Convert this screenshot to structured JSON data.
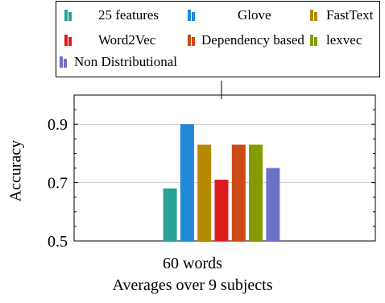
{
  "chart_data": {
    "type": "bar",
    "categories": [
      "60 words"
    ],
    "series": [
      {
        "name": "25 features",
        "values": [
          0.68
        ],
        "color": "#2aa198"
      },
      {
        "name": "Glove",
        "values": [
          0.9
        ],
        "color": "#1f8ad6"
      },
      {
        "name": "FastText",
        "values": [
          0.83
        ],
        "color": "#b58900"
      },
      {
        "name": "Word2Vec",
        "values": [
          0.71
        ],
        "color": "#dc1c1c"
      },
      {
        "name": "Dependency based",
        "values": [
          0.83
        ],
        "color": "#cb4b16"
      },
      {
        "name": "lexvec",
        "values": [
          0.83
        ],
        "color": "#859900"
      },
      {
        "name": "Non Distributional",
        "values": [
          0.75
        ],
        "color": "#6c71c4"
      }
    ],
    "title": "",
    "subtitle": "Averages over 9 subjects",
    "xlabel": "60 words",
    "ylabel": "Accuracy",
    "ylim": [
      0.5,
      1.0
    ],
    "yticks": [
      "0.5",
      "0.7",
      "0.9"
    ],
    "grid": true,
    "legend_position": "top"
  }
}
